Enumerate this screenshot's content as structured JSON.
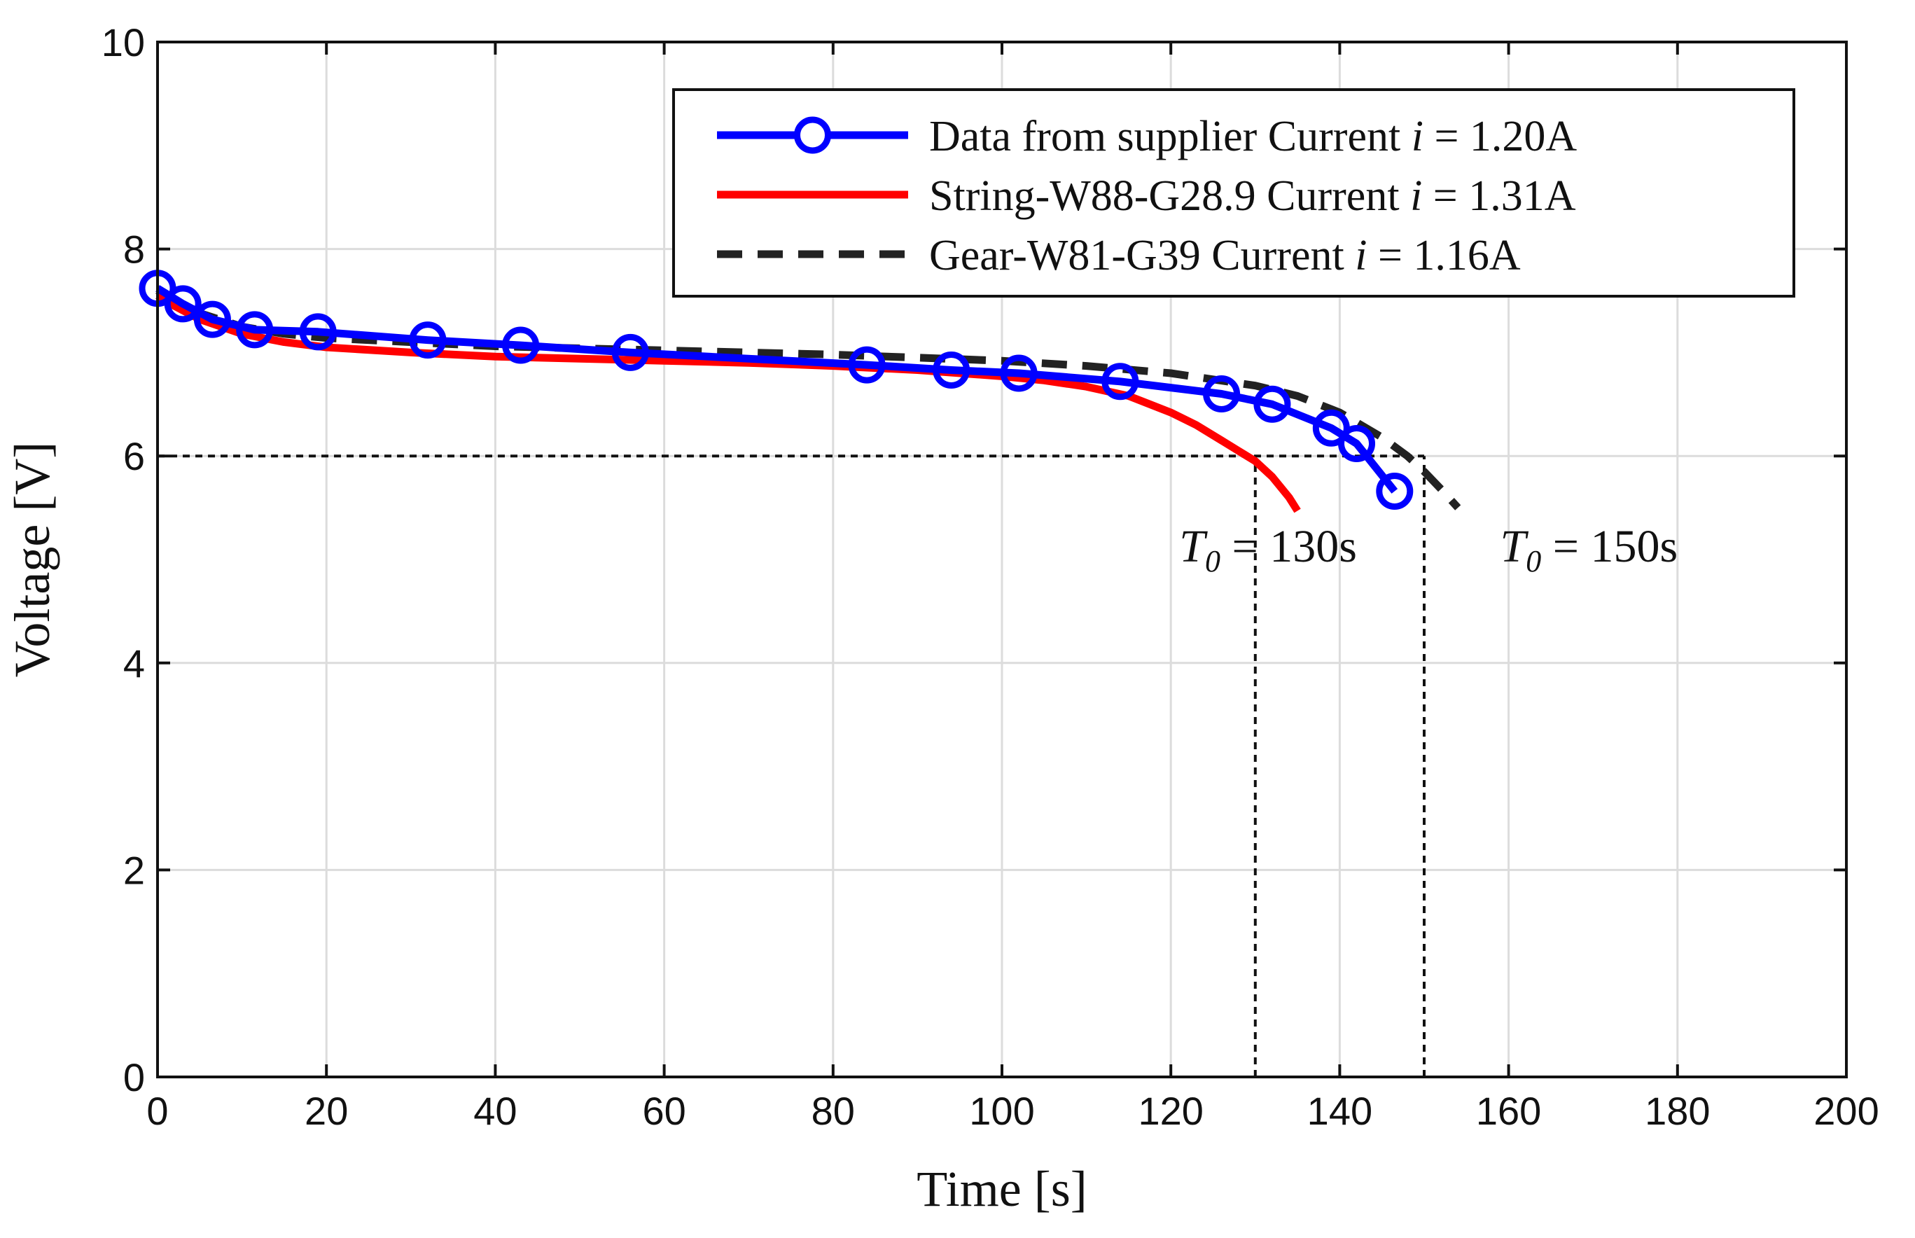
{
  "chart_data": {
    "type": "line",
    "xlabel": "Time [s]",
    "ylabel": "Voltage [V]",
    "xlim": [
      0,
      200
    ],
    "ylim": [
      0,
      10
    ],
    "grid": true,
    "xticks": [
      0,
      20,
      40,
      60,
      80,
      100,
      120,
      140,
      160,
      180,
      200
    ],
    "yticks": [
      0,
      2,
      4,
      6,
      8,
      10
    ],
    "legend_position": "top-right",
    "series": [
      {
        "name": "Data from supplier Current i = 1.20A",
        "legend": {
          "prefix": "Data from supplier Current ",
          "var": "i",
          "suffix": " = 1.20A"
        },
        "color": "#0000ff",
        "style": "solid",
        "marker": "circle",
        "x": [
          0,
          3,
          6.5,
          11.5,
          19,
          32,
          43,
          56,
          84,
          94,
          102,
          114,
          126,
          132,
          139,
          142,
          146.5
        ],
        "y": [
          7.62,
          7.47,
          7.32,
          7.22,
          7.2,
          7.12,
          7.07,
          7.0,
          6.88,
          6.83,
          6.8,
          6.72,
          6.6,
          6.5,
          6.27,
          6.12,
          5.66
        ]
      },
      {
        "name": "String-W88-G28.9 Current i = 1.31A",
        "legend": {
          "prefix": "String-W88-G28.9 Current ",
          "var": "i",
          "suffix": " = 1.31A"
        },
        "color": "#ff0000",
        "style": "solid",
        "marker": "none",
        "x": [
          0,
          2,
          5,
          10,
          15,
          20,
          30,
          40,
          50,
          60,
          70,
          80,
          90,
          100,
          105,
          110,
          115,
          120,
          123,
          126,
          128,
          130,
          132,
          134,
          135
        ],
        "y": [
          7.55,
          7.45,
          7.32,
          7.18,
          7.1,
          7.05,
          7.0,
          6.96,
          6.94,
          6.92,
          6.9,
          6.87,
          6.83,
          6.77,
          6.73,
          6.67,
          6.58,
          6.42,
          6.3,
          6.15,
          6.05,
          5.95,
          5.8,
          5.6,
          5.47
        ]
      },
      {
        "name": "Gear-W81-G39 Current i = 1.16A",
        "legend": {
          "prefix": "Gear-W81-G39 Current ",
          "var": "i",
          "suffix": " = 1.16A"
        },
        "color": "#222222",
        "style": "dashed",
        "marker": "none",
        "x": [
          0,
          2,
          5,
          10,
          15,
          20,
          30,
          40,
          50,
          60,
          70,
          80,
          90,
          100,
          110,
          120,
          130,
          135,
          140,
          145,
          148,
          150,
          152,
          154
        ],
        "y": [
          7.6,
          7.5,
          7.38,
          7.25,
          7.18,
          7.14,
          7.1,
          7.06,
          7.04,
          7.02,
          7.0,
          6.98,
          6.95,
          6.92,
          6.87,
          6.8,
          6.68,
          6.58,
          6.42,
          6.18,
          6.0,
          5.85,
          5.68,
          5.5
        ]
      }
    ],
    "reference_lines": [
      {
        "type": "horizontal",
        "y": 6,
        "x_from": 0,
        "x_to": 150
      },
      {
        "type": "vertical",
        "x": 130,
        "y_from": 0,
        "y_to": 6
      },
      {
        "type": "vertical",
        "x": 150,
        "y_from": 0,
        "y_to": 6
      }
    ],
    "annotations": [
      {
        "var": "T",
        "sub": "0",
        "text": " = 130s",
        "x": 121,
        "y": 4.98
      },
      {
        "var": "T",
        "sub": "0",
        "text": " = 150s",
        "x": 159,
        "y": 4.98
      }
    ]
  }
}
